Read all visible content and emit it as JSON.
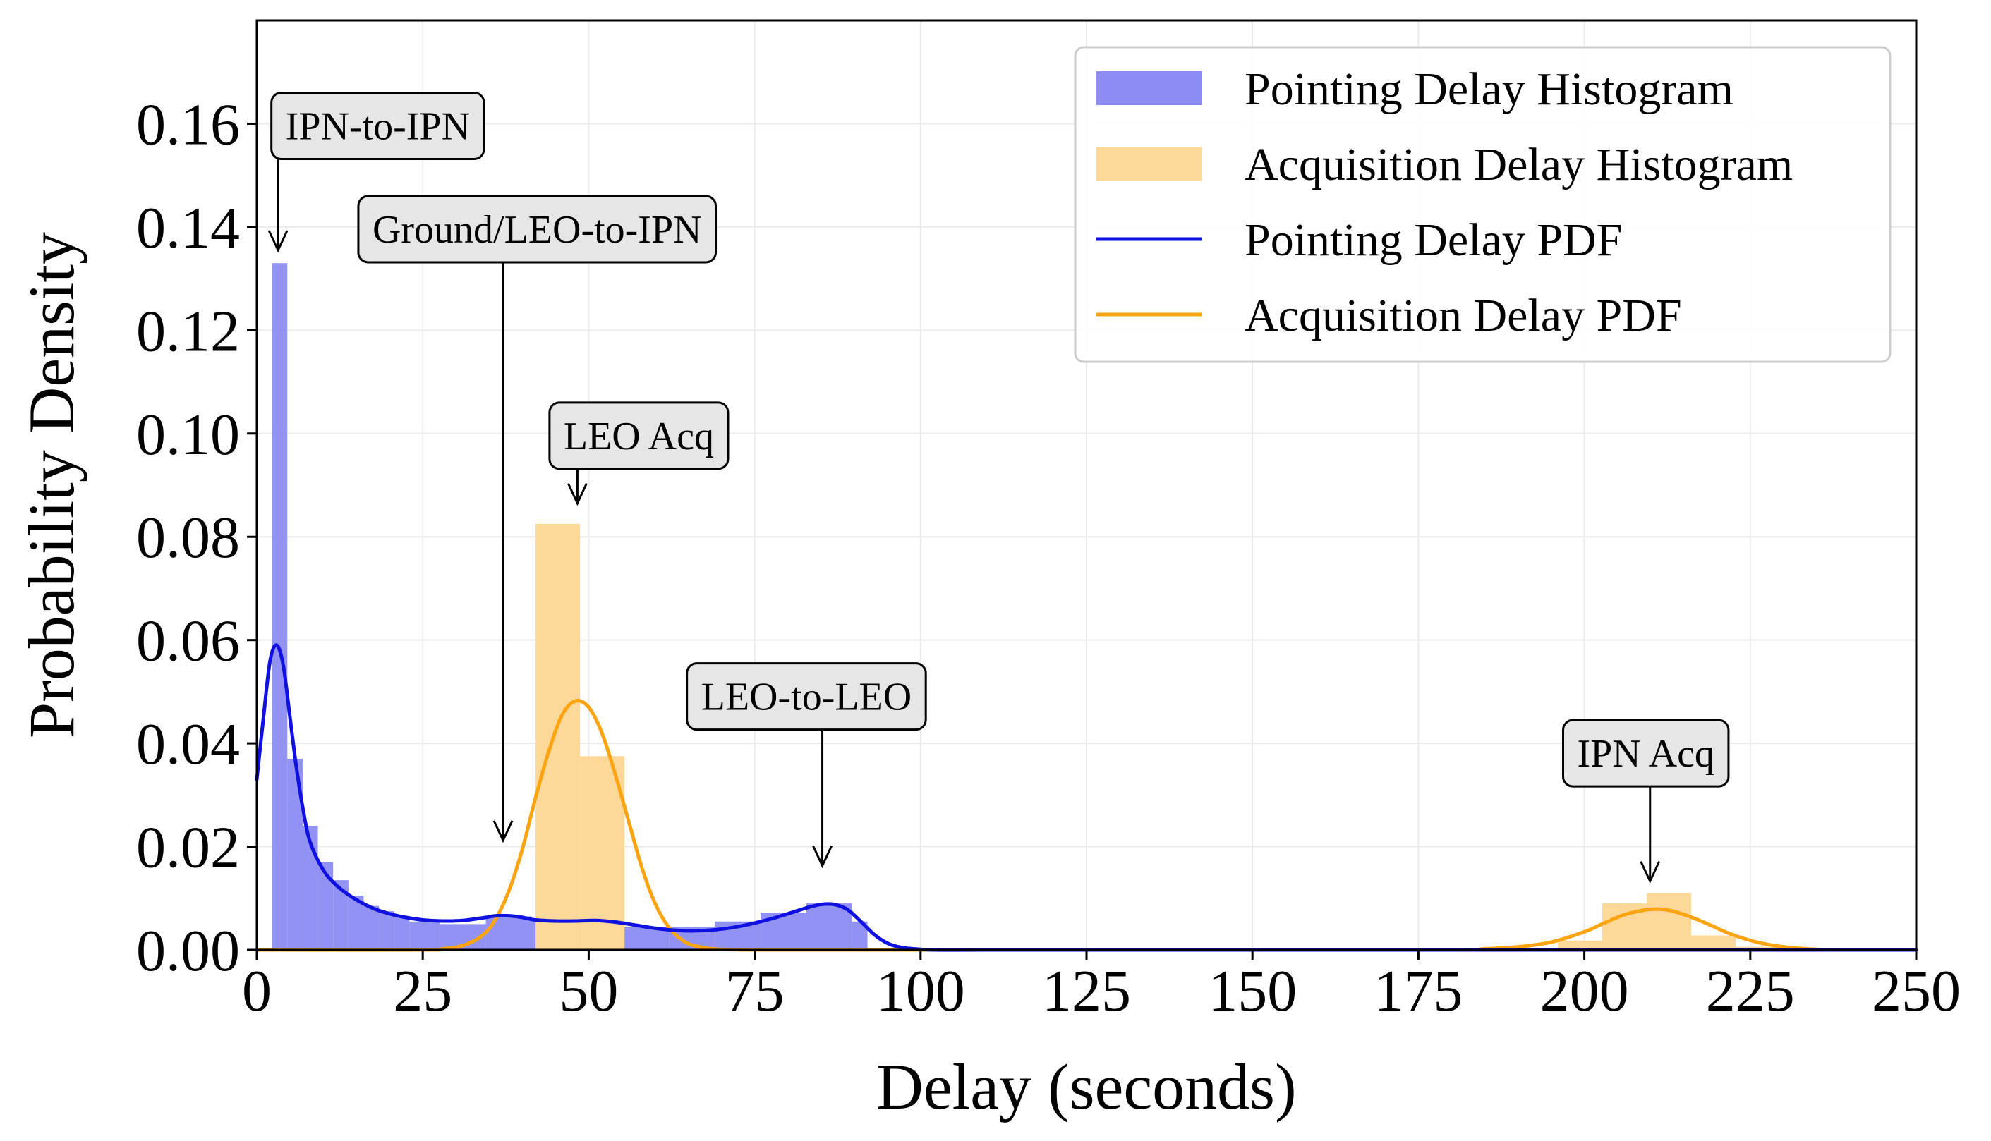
{
  "chart_data": {
    "type": "bar",
    "xlabel": "Delay (seconds)",
    "ylabel": "Probability Density",
    "xlim": [
      0,
      250
    ],
    "ylim": [
      0,
      0.18
    ],
    "xticks": [
      0,
      25,
      50,
      75,
      100,
      125,
      150,
      175,
      200,
      225,
      250
    ],
    "yticks": [
      0.0,
      0.02,
      0.04,
      0.06,
      0.08,
      0.1,
      0.12,
      0.14,
      0.16
    ],
    "ytick_labels": [
      "0.00",
      "0.02",
      "0.04",
      "0.06",
      "0.08",
      "0.10",
      "0.12",
      "0.14",
      "0.16"
    ],
    "grid": true,
    "legend_position": "top-right",
    "colors": {
      "pointing_hist": "#8c8cf4",
      "acquisition_hist": "#fdd898",
      "pointing_pdf": "#1010e0",
      "acquisition_pdf": "#ffa411"
    },
    "histograms": [
      {
        "name": "Pointing Delay Histogram",
        "bins": [
          {
            "x0": 2.3,
            "x1": 4.6,
            "y": 0.133
          },
          {
            "x0": 4.6,
            "x1": 6.9,
            "y": 0.037
          },
          {
            "x0": 6.9,
            "x1": 9.2,
            "y": 0.024
          },
          {
            "x0": 9.2,
            "x1": 11.5,
            "y": 0.017
          },
          {
            "x0": 11.5,
            "x1": 13.8,
            "y": 0.0135
          },
          {
            "x0": 13.8,
            "x1": 16.1,
            "y": 0.0105
          },
          {
            "x0": 16.1,
            "x1": 18.4,
            "y": 0.0085
          },
          {
            "x0": 18.4,
            "x1": 20.7,
            "y": 0.0075
          },
          {
            "x0": 20.7,
            "x1": 23.0,
            "y": 0.0065
          },
          {
            "x0": 23.0,
            "x1": 27.6,
            "y": 0.0055
          },
          {
            "x0": 27.6,
            "x1": 34.5,
            "y": 0.005
          },
          {
            "x0": 34.5,
            "x1": 41.4,
            "y": 0.0065
          },
          {
            "x0": 41.4,
            "x1": 48.3,
            "y": 0.006
          },
          {
            "x0": 48.3,
            "x1": 55.2,
            "y": 0.006
          },
          {
            "x0": 55.2,
            "x1": 62.1,
            "y": 0.0045
          },
          {
            "x0": 62.1,
            "x1": 69.0,
            "y": 0.0045
          },
          {
            "x0": 69.0,
            "x1": 75.9,
            "y": 0.0055
          },
          {
            "x0": 75.9,
            "x1": 82.8,
            "y": 0.0072
          },
          {
            "x0": 82.8,
            "x1": 89.7,
            "y": 0.009
          },
          {
            "x0": 89.7,
            "x1": 92.0,
            "y": 0.0055
          }
        ]
      },
      {
        "name": "Acquisition Delay Histogram",
        "bins": [
          {
            "x0": 42.0,
            "x1": 48.7,
            "y": 0.0825
          },
          {
            "x0": 48.7,
            "x1": 55.4,
            "y": 0.0375
          },
          {
            "x0": 196.0,
            "x1": 202.7,
            "y": 0.0018
          },
          {
            "x0": 202.7,
            "x1": 209.4,
            "y": 0.009
          },
          {
            "x0": 209.4,
            "x1": 216.1,
            "y": 0.011
          },
          {
            "x0": 216.1,
            "x1": 222.8,
            "y": 0.0028
          },
          {
            "x0": 222.8,
            "x1": 229.5,
            "y": 0.0006
          }
        ]
      }
    ],
    "series": [
      {
        "name": "Pointing Delay PDF",
        "x": [
          0,
          1,
          2,
          3,
          4,
          5,
          6,
          7,
          8,
          10,
          12,
          14,
          16,
          18,
          20,
          22,
          25,
          28,
          31,
          34,
          36,
          38,
          40,
          42,
          45,
          48,
          51,
          54,
          57,
          60,
          63,
          66,
          69,
          72,
          75,
          78,
          81,
          83,
          85,
          87,
          89,
          91,
          93,
          95,
          97,
          99,
          102,
          110,
          130,
          150,
          175,
          200,
          225,
          250
        ],
        "y": [
          0.033,
          0.045,
          0.056,
          0.059,
          0.055,
          0.045,
          0.035,
          0.027,
          0.021,
          0.0155,
          0.0125,
          0.0105,
          0.009,
          0.0078,
          0.007,
          0.0064,
          0.0058,
          0.0056,
          0.0057,
          0.0062,
          0.0066,
          0.0066,
          0.0063,
          0.0058,
          0.0056,
          0.0056,
          0.0057,
          0.0054,
          0.0048,
          0.0042,
          0.0038,
          0.0037,
          0.0039,
          0.0044,
          0.0052,
          0.0062,
          0.0074,
          0.0082,
          0.0088,
          0.0088,
          0.0078,
          0.0055,
          0.003,
          0.0013,
          0.0005,
          0.0002,
          0.0,
          0.0,
          0.0,
          0.0,
          0.0,
          0.0,
          0.0,
          0.0
        ]
      },
      {
        "name": "Acquisition Delay PDF",
        "x": [
          0,
          25,
          28,
          31,
          34,
          36,
          38,
          40,
          42,
          44,
          46,
          48,
          50,
          52,
          54,
          56,
          58,
          60,
          62,
          64,
          66,
          70,
          80,
          100,
          150,
          180,
          185,
          190,
          195,
          200,
          203,
          206,
          209,
          211,
          213,
          216,
          219,
          222,
          226,
          230,
          235,
          240,
          245,
          250
        ],
        "y": [
          0.0,
          0.0,
          0.0002,
          0.0008,
          0.0028,
          0.006,
          0.0115,
          0.0195,
          0.0295,
          0.0385,
          0.0455,
          0.0482,
          0.047,
          0.042,
          0.034,
          0.025,
          0.016,
          0.009,
          0.0045,
          0.002,
          0.0008,
          0.0001,
          0.0,
          0.0,
          0.0,
          0.0,
          0.0002,
          0.0006,
          0.0015,
          0.0035,
          0.0052,
          0.0068,
          0.0077,
          0.0079,
          0.0076,
          0.0064,
          0.0048,
          0.0031,
          0.0015,
          0.0006,
          0.0001,
          0.0,
          0.0,
          0.0
        ]
      }
    ],
    "annotations": [
      {
        "text": "IPN-to-IPN",
        "label_x": 2.2,
        "label_y": 0.166,
        "arrow_x": 3.2,
        "arrow_y0": 0.1565,
        "arrow_y1": 0.1355
      },
      {
        "text": "Ground/LEO-to-IPN",
        "label_x": 15.3,
        "label_y": 0.146,
        "arrow_x": 37.1,
        "arrow_y0": 0.1365,
        "arrow_y1": 0.0212
      },
      {
        "text": "LEO Acq",
        "label_x": 44.1,
        "label_y": 0.106,
        "arrow_x": 48.3,
        "arrow_y0": 0.0965,
        "arrow_y1": 0.0865
      },
      {
        "text": "LEO-to-LEO",
        "label_x": 64.8,
        "label_y": 0.0555,
        "arrow_x": 85.2,
        "arrow_y0": 0.046,
        "arrow_y1": 0.0163
      },
      {
        "text": "IPN Acq",
        "label_x": 196.8,
        "label_y": 0.0445,
        "arrow_x": 209.9,
        "arrow_y0": 0.0365,
        "arrow_y1": 0.0133
      }
    ]
  }
}
